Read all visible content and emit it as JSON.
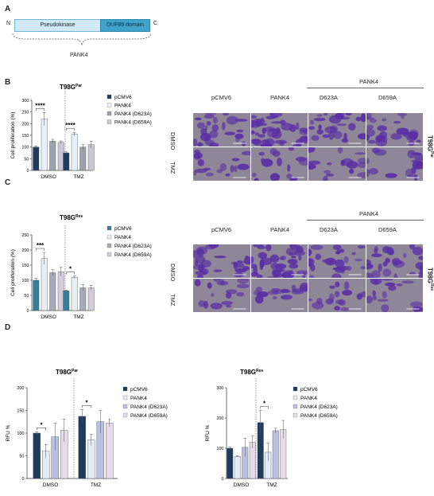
{
  "panels": {
    "A": "A",
    "B": "B",
    "C": "C",
    "D": "D"
  },
  "domain_diagram": {
    "n_term": "N",
    "c_term": "C",
    "domain1": "Pseudokinase",
    "domain2": "DUF89 domain",
    "protein": "PANK4"
  },
  "micro_labels": {
    "col1": "pCMV6",
    "col2": "PANK4",
    "group": "PANK4",
    "col3": "D623A",
    "col4": "D659A",
    "row1": "DMSO",
    "row2": "TMZ",
    "side_B_main": "T98G",
    "side_B_sup": "Par",
    "side_C_main": "T98G",
    "side_C_sup": "Res"
  },
  "colors": {
    "domain1": "#cfeaf6",
    "domain2": "#3fa3cc",
    "par_pcmv6": "#1f3b5e",
    "par_pank4": "#e8f1fb",
    "par_d623a": "#9aa3ad",
    "par_d659a": "#c9c6d8",
    "res_pcmv6": "#3a7d96",
    "res_pank4": "#e9eef2",
    "res_d623a": "#a6aab8",
    "res_d659a": "#d4ccdc",
    "d_pcmv6": "#1f3b5e",
    "d_pank4": "#e4ecf8",
    "d_d623a": "#b9c1e3",
    "d_d659a": "#e6dbe9",
    "micro_bg": "#8f8798",
    "micro_purple": "#5a2fa5"
  },
  "chart_data": [
    {
      "id": "B",
      "type": "bar",
      "title_main": "T98G",
      "title_sup": "Par",
      "ylabel": "Cell proliferation (%)",
      "ylim": [
        0,
        300
      ],
      "yticks": [
        "0",
        "50",
        "100",
        "150",
        "200",
        "250",
        "300"
      ],
      "categories": [
        "DMSO",
        "TMZ"
      ],
      "series": [
        {
          "name": "pCMV6",
          "values": [
            100,
            75
          ],
          "errors": [
            5,
            4
          ]
        },
        {
          "name": "PANK4",
          "values": [
            220,
            155
          ],
          "errors": [
            28,
            8
          ]
        },
        {
          "name": "PANK4 (D623A)",
          "values": [
            125,
            100
          ],
          "errors": [
            8,
            12
          ]
        },
        {
          "name": "PANK4 (D659A)",
          "values": [
            120,
            110
          ],
          "errors": [
            6,
            15
          ]
        }
      ],
      "significance": [
        {
          "category": "DMSO",
          "label": "****"
        },
        {
          "category": "TMZ",
          "label": "****"
        }
      ]
    },
    {
      "id": "C",
      "type": "bar",
      "title_main": "T98G",
      "title_sup": "Res",
      "ylabel": "Cell proliferation (%)",
      "ylim": [
        0,
        250
      ],
      "yticks": [
        "0",
        "50",
        "100",
        "150",
        "200",
        "250"
      ],
      "categories": [
        "DMSO",
        "TMZ"
      ],
      "series": [
        {
          "name": "pCMV6",
          "values": [
            100,
            65
          ],
          "errors": [
            6,
            3
          ]
        },
        {
          "name": "PANK4",
          "values": [
            172,
            110
          ],
          "errors": [
            20,
            4
          ]
        },
        {
          "name": "PANK4 (D623A)",
          "values": [
            125,
            75
          ],
          "errors": [
            10,
            10
          ]
        },
        {
          "name": "PANK4 (D659A)",
          "values": [
            128,
            75
          ],
          "errors": [
            15,
            8
          ]
        }
      ],
      "significance": [
        {
          "category": "DMSO",
          "label": "***"
        },
        {
          "category": "TMZ",
          "label": "*"
        }
      ]
    },
    {
      "id": "D1",
      "type": "bar",
      "title_main": "T98G",
      "title_sup": "Par",
      "ylabel": "RFU %",
      "ylim": [
        0,
        200
      ],
      "yticks": [
        "0",
        "50",
        "100",
        "150",
        "200"
      ],
      "categories": [
        "DMSO",
        "TMZ"
      ],
      "series": [
        {
          "name": "pCMV6",
          "values": [
            100,
            137
          ],
          "errors": [
            3,
            15
          ]
        },
        {
          "name": "PANK4",
          "values": [
            60,
            85
          ],
          "errors": [
            15,
            12
          ]
        },
        {
          "name": "PANK4 (D623A)",
          "values": [
            92,
            125
          ],
          "errors": [
            30,
            25
          ]
        },
        {
          "name": "PANK4 (D659A)",
          "values": [
            106,
            122
          ],
          "errors": [
            25,
            8
          ]
        }
      ],
      "significance": [
        {
          "category": "DMSO",
          "label": "*"
        },
        {
          "category": "TMZ",
          "label": "*"
        }
      ]
    },
    {
      "id": "D2",
      "type": "bar",
      "title_main": "T98G",
      "title_sup": "Res",
      "ylabel": "RFU %",
      "ylim": [
        0,
        300
      ],
      "yticks": [
        "0",
        "100",
        "200",
        "300"
      ],
      "categories": [
        "DMSO",
        "TMZ"
      ],
      "series": [
        {
          "name": "pCMV6",
          "values": [
            100,
            185
          ],
          "errors": [
            4,
            40
          ]
        },
        {
          "name": "PANK4",
          "values": [
            73,
            87
          ],
          "errors": [
            2,
            30
          ]
        },
        {
          "name": "PANK4 (D623A)",
          "values": [
            103,
            158
          ],
          "errors": [
            30,
            8
          ]
        },
        {
          "name": "PANK4 (D659A)",
          "values": [
            120,
            162
          ],
          "errors": [
            20,
            30
          ]
        }
      ],
      "significance": [
        {
          "category": "TMZ",
          "label": "*"
        }
      ]
    }
  ]
}
